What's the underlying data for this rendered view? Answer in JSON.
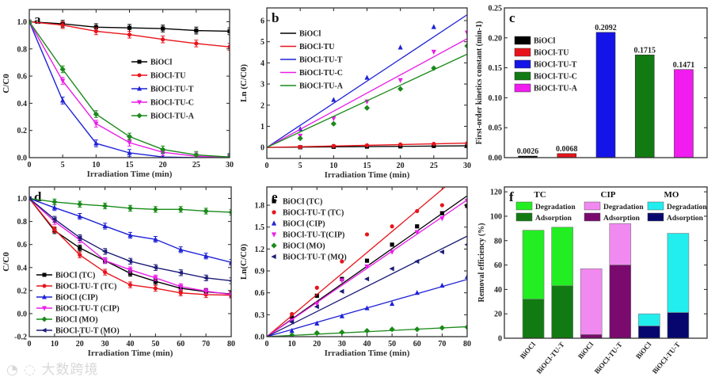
{
  "watermark": "大数跨境",
  "chart_data": [
    {
      "panel": "a",
      "type": "line",
      "xlabel": "Irradiation Time (min)",
      "ylabel": "C/C0",
      "xlim": [
        0,
        30
      ],
      "ylim": [
        0,
        1.09
      ],
      "xticks": [
        0,
        5,
        10,
        15,
        20,
        25,
        30
      ],
      "yticks": [
        0.0,
        0.2,
        0.4,
        0.6,
        0.8,
        1.0
      ],
      "ytick_decimals": 1,
      "legend": "center-right",
      "errorbars": true,
      "yerr": 0.025,
      "x": [
        0,
        5,
        10,
        15,
        20,
        25,
        30
      ],
      "series": [
        {
          "name": "BiOCl",
          "color": "#000000",
          "marker": "square",
          "values": [
            1,
            0.985,
            0.96,
            0.955,
            0.95,
            0.935,
            0.93
          ]
        },
        {
          "name": "BiOCl-TU",
          "color": "#e8141b",
          "marker": "circle",
          "values": [
            1,
            0.975,
            0.93,
            0.905,
            0.87,
            0.84,
            0.815
          ]
        },
        {
          "name": "BiOCl-TU-T",
          "color": "#1e22d6",
          "marker": "triangle-up",
          "values": [
            1,
            0.42,
            0.105,
            0.035,
            0.005,
            0.0,
            0.0
          ]
        },
        {
          "name": "BiOCl-TU-C",
          "color": "#e81ee8",
          "marker": "triangle-down",
          "values": [
            1,
            0.565,
            0.25,
            0.11,
            0.04,
            0.01,
            0.005
          ]
        },
        {
          "name": "BiOCl-TU-A",
          "color": "#1a8a1a",
          "marker": "diamond",
          "values": [
            1,
            0.65,
            0.32,
            0.155,
            0.06,
            0.02,
            0.005
          ]
        }
      ]
    },
    {
      "panel": "b",
      "type": "scatter",
      "xlabel": "Irradiation Time (min)",
      "ylabel": "Ln (C/C0)",
      "xlim": [
        0,
        30
      ],
      "ylim": [
        -0.52,
        6.6
      ],
      "xticks": [
        0,
        5,
        10,
        15,
        20,
        25,
        30
      ],
      "yticks": [
        0,
        1,
        2,
        3,
        4,
        5,
        6
      ],
      "ytick_decimals": 0,
      "legend": "top-left",
      "x": [
        5,
        10,
        15,
        20,
        25,
        30
      ],
      "series": [
        {
          "name": "BiOCl",
          "color": "#000000",
          "marker": "square",
          "slope": 0.0026,
          "values": [
            0.01,
            0.03,
            0.04,
            0.05,
            0.07,
            0.07
          ]
        },
        {
          "name": "BiOCl-TU",
          "color": "#e8141b",
          "marker": "circle",
          "slope": 0.0068,
          "values": [
            0.02,
            0.07,
            0.1,
            0.14,
            0.17,
            0.2
          ]
        },
        {
          "name": "BiOCl-TU-T",
          "color": "#1e22d6",
          "marker": "triangle-up",
          "slope": 0.2092,
          "values": [
            0.87,
            2.25,
            3.3,
            4.73,
            5.7,
            null
          ]
        },
        {
          "name": "BiOCl-TU-C",
          "color": "#e81ee8",
          "marker": "triangle-down",
          "slope": 0.1715,
          "values": [
            0.55,
            1.37,
            2.17,
            3.18,
            4.52,
            5.43
          ]
        },
        {
          "name": "BiOCl-TU-A",
          "color": "#1a8a1a",
          "marker": "diamond",
          "slope": 0.1471,
          "values": [
            0.43,
            1.12,
            1.87,
            2.77,
            3.75,
            4.8
          ]
        }
      ]
    },
    {
      "panel": "c",
      "type": "bar",
      "xlabel": "",
      "ylabel": "First-order kinetics constant (min-1)",
      "xlim": [
        0.4,
        5.6
      ],
      "ylim": [
        0,
        0.25
      ],
      "yticks": [
        0.0,
        0.05,
        0.1,
        0.15,
        0.2,
        0.25
      ],
      "ytick_decimals": 2,
      "legend": "top-left",
      "categories": [
        "BiOCl",
        "BiOCl-TU",
        "BiOCl-TU-T",
        "BiOCl-TU-C",
        "BiOCl-TU-A"
      ],
      "values": [
        0.0026,
        0.0068,
        0.2092,
        0.1715,
        0.1471
      ],
      "data_labels": [
        "0.0026",
        "0.0068",
        "0.2092",
        "0.1715",
        "0.1471"
      ],
      "colors": [
        "#000000",
        "#e8141b",
        "#1414e8",
        "#127a12",
        "#f01cf0"
      ]
    },
    {
      "panel": "d",
      "type": "line",
      "xlabel": "Irradiation Time (min)",
      "ylabel": "C/C0",
      "xlim": [
        0,
        80
      ],
      "ylim": [
        -0.2,
        1.1
      ],
      "xticks": [
        0,
        10,
        20,
        30,
        40,
        50,
        60,
        70,
        80
      ],
      "yticks": [
        -0.2,
        0.0,
        0.2,
        0.4,
        0.6,
        0.8,
        1.0
      ],
      "ytick_decimals": 1,
      "legend": "bottom-left",
      "errorbars": true,
      "yerr": 0.025,
      "x": [
        0,
        10,
        20,
        30,
        40,
        50,
        60,
        70,
        80
      ],
      "series": [
        {
          "name": "BiOCl (TC)",
          "color": "#000000",
          "marker": "square",
          "values": [
            1,
            0.72,
            0.57,
            0.46,
            0.35,
            0.28,
            0.22,
            0.19,
            0.17
          ]
        },
        {
          "name": "BiOCl-TU-T (TC)",
          "color": "#e8141b",
          "marker": "circle",
          "values": [
            1,
            0.73,
            0.51,
            0.36,
            0.25,
            0.22,
            0.18,
            0.165,
            0.16
          ]
        },
        {
          "name": "BiOCl (CIP)",
          "color": "#1e22d6",
          "marker": "triangle-up",
          "values": [
            1,
            0.92,
            0.845,
            0.76,
            0.68,
            0.645,
            0.555,
            0.5,
            0.445
          ]
        },
        {
          "name": "BiOCl-TU-T (CIP)",
          "color": "#e81ee8",
          "marker": "triangle-down",
          "values": [
            1,
            0.8,
            0.64,
            0.46,
            0.38,
            0.31,
            0.235,
            0.195,
            0.165
          ]
        },
        {
          "name": "BiOCl (MO)",
          "color": "#1a8a1a",
          "marker": "diamond",
          "values": [
            1,
            0.97,
            0.95,
            0.935,
            0.915,
            0.905,
            0.905,
            0.89,
            0.88
          ]
        },
        {
          "name": "BiOCl-TU-T (MO)",
          "color": "#1c1c78",
          "marker": "triangle-left",
          "values": [
            1,
            0.82,
            0.66,
            0.54,
            0.455,
            0.4,
            0.355,
            0.31,
            0.285
          ]
        }
      ]
    },
    {
      "panel": "e",
      "type": "scatter",
      "xlabel": "Irradiation Time (min)",
      "ylabel": "Ln(C/C0)",
      "xlim": [
        0,
        80
      ],
      "ylim": [
        0,
        2.05
      ],
      "xticks": [
        0,
        10,
        20,
        30,
        40,
        50,
        60,
        70,
        80
      ],
      "yticks": [
        0.0,
        0.3,
        0.6,
        0.9,
        1.2,
        1.5,
        1.8
      ],
      "ytick_decimals": 1,
      "legend": "top-left",
      "x": [
        10,
        20,
        30,
        40,
        50,
        60,
        70,
        80
      ],
      "series": [
        {
          "name": "BiOCl (TC)",
          "color": "#000000",
          "marker": "square",
          "slope": 0.0241,
          "values": [
            0.26,
            0.56,
            0.79,
            1.04,
            1.26,
            1.51,
            1.69,
            1.79
          ]
        },
        {
          "name": "BiOCl-TU-T (TC)",
          "color": "#e8141b",
          "marker": "circle",
          "slope": 0.0288,
          "values": [
            0.31,
            0.67,
            1.03,
            1.4,
            1.51,
            1.72,
            1.8,
            null
          ]
        },
        {
          "name": "BiOCl (CIP)",
          "color": "#1e22d6",
          "marker": "triangle-up",
          "slope": 0.0098,
          "values": [
            0.08,
            0.18,
            0.28,
            0.39,
            0.45,
            0.6,
            0.7,
            0.82
          ]
        },
        {
          "name": "BiOCl-TU-T(CIP)",
          "color": "#e81ee8",
          "marker": "triangle-down",
          "slope": 0.0234,
          "values": [
            0.22,
            0.45,
            0.77,
            0.96,
            1.16,
            1.43,
            1.62,
            1.86
          ]
        },
        {
          "name": "BiOCl (MO)",
          "color": "#1a8a1a",
          "marker": "diamond",
          "slope": 0.0017,
          "values": [
            0.02,
            0.05,
            0.06,
            0.08,
            0.1,
            0.1,
            0.12,
            0.13
          ]
        },
        {
          "name": "BiOCl-TU-T (MO)",
          "color": "#1c1c78",
          "marker": "triangle-left",
          "slope": 0.0172,
          "values": [
            0.2,
            0.41,
            0.62,
            0.79,
            0.93,
            1.03,
            1.16,
            1.26
          ]
        }
      ]
    },
    {
      "panel": "f",
      "type": "bar",
      "stacked": true,
      "xlabel": "",
      "ylabel": "Removal efficiency (%)",
      "xlim": [
        0,
        7
      ],
      "ylim": [
        0,
        124
      ],
      "yticks": [
        0,
        20,
        40,
        60,
        80,
        100,
        120
      ],
      "ytick_decimals": 0,
      "legend": "top",
      "categories": [
        "BiOCl",
        "BiOCl-TU-T",
        "BiOCl",
        "BiOCl-TU-T",
        "BiOCl",
        "BiOCl-TU-T"
      ],
      "groups": [
        {
          "name": "TC",
          "degradation_color": "#22ee22",
          "adsorption_color": "#127a12"
        },
        {
          "name": "CIP",
          "degradation_color": "#f08af0",
          "adsorption_color": "#7a0a6e"
        },
        {
          "name": "MO",
          "degradation_color": "#22eeee",
          "adsorption_color": "#06066e"
        }
      ],
      "series_labels": [
        "Degradation",
        "Adsorption"
      ],
      "adsorption": [
        32,
        43,
        3,
        60,
        10,
        21
      ],
      "total": [
        88.5,
        91,
        57,
        94,
        20,
        86
      ]
    }
  ]
}
